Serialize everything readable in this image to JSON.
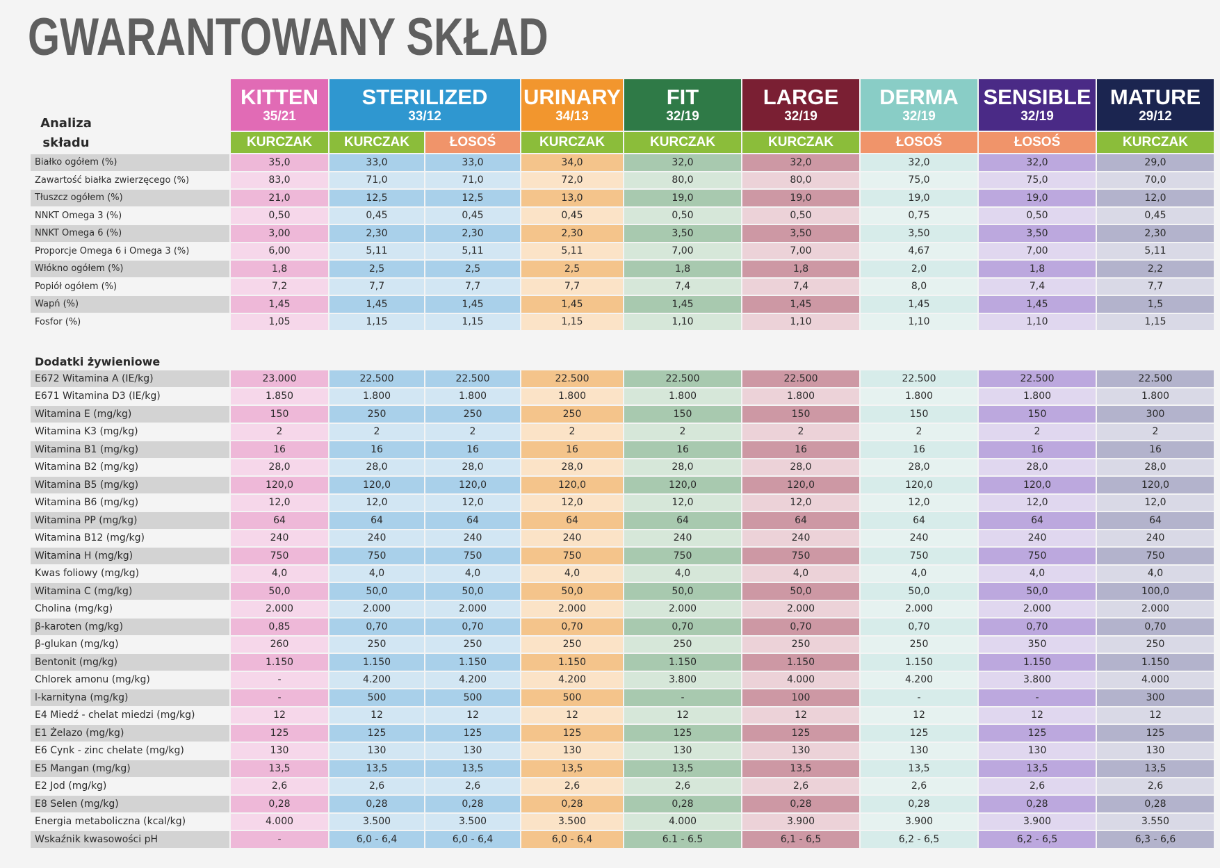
{
  "title": "GWARANTOWANY SKŁAD",
  "header_label": "Analiza składu",
  "products": [
    {
      "name": "KITTEN",
      "ratio": "35/21",
      "color": "#e16bb5",
      "span": 1
    },
    {
      "name": "STERILIZED",
      "ratio": "33/12",
      "color": "#2f97d0",
      "span": 2
    },
    {
      "name": "URINARY",
      "ratio": "34/13",
      "color": "#f2962e",
      "span": 1
    },
    {
      "name": "FIT",
      "ratio": "32/19",
      "color": "#2f7a47",
      "span": 1
    },
    {
      "name": "LARGE",
      "ratio": "32/19",
      "color": "#7a1f33",
      "span": 1
    },
    {
      "name": "DERMA",
      "ratio": "32/19",
      "color": "#89cdc6",
      "span": 1
    },
    {
      "name": "SENSIBLE",
      "ratio": "32/19",
      "color": "#4a2a86",
      "span": 1
    },
    {
      "name": "MATURE",
      "ratio": "29/12",
      "color": "#1b2550",
      "span": 1
    }
  ],
  "flavors": [
    {
      "label": "KURCZAK",
      "color": "#8bbd3a"
    },
    {
      "label": "KURCZAK",
      "color": "#8bbd3a"
    },
    {
      "label": "ŁOSOŚ",
      "color": "#f0946a"
    },
    {
      "label": "KURCZAK",
      "color": "#8bbd3a"
    },
    {
      "label": "KURCZAK",
      "color": "#8bbd3a"
    },
    {
      "label": "KURCZAK",
      "color": "#8bbd3a"
    },
    {
      "label": "ŁOSOŚ",
      "color": "#f0946a"
    },
    {
      "label": "ŁOSOŚ",
      "color": "#f0946a"
    },
    {
      "label": "KURCZAK",
      "color": "#8bbd3a"
    }
  ],
  "column_colors": {
    "light": [
      "#f6d7ea",
      "#d2e6f3",
      "#d2e6f3",
      "#fbe3c7",
      "#d6e7d9",
      "#ecd2d8",
      "#e6f2f0",
      "#e0d7ef",
      "#d9d9e6"
    ],
    "dark": [
      "#eeb8d8",
      "#a9d0ea",
      "#a9d0ea",
      "#f4c48b",
      "#a8c9af",
      "#cd98a4",
      "#d7ecea",
      "#bca8de",
      "#b3b3cc"
    ]
  },
  "analysis": [
    {
      "label": "Białko ogółem (%)",
      "values": [
        "35,0",
        "33,0",
        "33,0",
        "34,0",
        "32,0",
        "32,0",
        "32,0",
        "32,0",
        "29,0"
      ]
    },
    {
      "label": "Zawartość białka zwierzęcego (%)",
      "values": [
        "83,0",
        "71,0",
        "71,0",
        "72,0",
        "80,0",
        "80,0",
        "75,0",
        "75,0",
        "70,0"
      ]
    },
    {
      "label": "Tłuszcz ogółem (%)",
      "values": [
        "21,0",
        "12,5",
        "12,5",
        "13,0",
        "19,0",
        "19,0",
        "19,0",
        "19,0",
        "12,0"
      ]
    },
    {
      "label": "NNKT Omega 3 (%)",
      "values": [
        "0,50",
        "0,45",
        "0,45",
        "0,45",
        "0,50",
        "0,50",
        "0,75",
        "0,50",
        "0,45"
      ]
    },
    {
      "label": "NNKT Omega 6 (%)",
      "values": [
        "3,00",
        "2,30",
        "2,30",
        "2,30",
        "3,50",
        "3,50",
        "3,50",
        "3,50",
        "2,30"
      ]
    },
    {
      "label": "Proporcje Omega 6 i Omega 3 (%)",
      "values": [
        "6,00",
        "5,11",
        "5,11",
        "5,11",
        "7,00",
        "7,00",
        "4,67",
        "7,00",
        "5,11"
      ]
    },
    {
      "label": "Włókno ogółem (%)",
      "values": [
        "1,8",
        "2,5",
        "2,5",
        "2,5",
        "1,8",
        "1,8",
        "2,0",
        "1,8",
        "2,2"
      ]
    },
    {
      "label": "Popiół ogółem (%)",
      "values": [
        "7,2",
        "7,7",
        "7,7",
        "7,7",
        "7,4",
        "7,4",
        "8,0",
        "7,4",
        "7,7"
      ]
    },
    {
      "label": "Wapń (%)",
      "values": [
        "1,45",
        "1,45",
        "1,45",
        "1,45",
        "1,45",
        "1,45",
        "1,45",
        "1,45",
        "1,5"
      ]
    },
    {
      "label": "Fosfor (%)",
      "values": [
        "1,05",
        "1,15",
        "1,15",
        "1,15",
        "1,10",
        "1,10",
        "1,10",
        "1,10",
        "1,15"
      ]
    }
  ],
  "additives_title": "Dodatki żywieniowe",
  "additives": [
    {
      "label": "E672 Witamina A (IE/kg)",
      "values": [
        "23.000",
        "22.500",
        "22.500",
        "22.500",
        "22.500",
        "22.500",
        "22.500",
        "22.500",
        "22.500"
      ]
    },
    {
      "label": "E671 Witamina D3 (IE/kg)",
      "values": [
        "1.850",
        "1.800",
        "1.800",
        "1.800",
        "1.800",
        "1.800",
        "1.800",
        "1.800",
        "1.800"
      ]
    },
    {
      "label": "Witamina E (mg/kg)",
      "values": [
        "150",
        "250",
        "250",
        "250",
        "150",
        "150",
        "150",
        "150",
        "300"
      ]
    },
    {
      "label": "Witamina K3 (mg/kg)",
      "values": [
        "2",
        "2",
        "2",
        "2",
        "2",
        "2",
        "2",
        "2",
        "2"
      ]
    },
    {
      "label": "Witamina B1 (mg/kg)",
      "values": [
        "16",
        "16",
        "16",
        "16",
        "16",
        "16",
        "16",
        "16",
        "16"
      ]
    },
    {
      "label": "Witamina B2 (mg/kg)",
      "values": [
        "28,0",
        "28,0",
        "28,0",
        "28,0",
        "28,0",
        "28,0",
        "28,0",
        "28,0",
        "28,0"
      ]
    },
    {
      "label": "Witamina B5 (mg/kg)",
      "values": [
        "120,0",
        "120,0",
        "120,0",
        "120,0",
        "120,0",
        "120,0",
        "120,0",
        "120,0",
        "120,0"
      ]
    },
    {
      "label": "Witamina B6 (mg/kg)",
      "values": [
        "12,0",
        "12,0",
        "12,0",
        "12,0",
        "12,0",
        "12,0",
        "12,0",
        "12,0",
        "12,0"
      ]
    },
    {
      "label": "Witamina PP (mg/kg)",
      "values": [
        "64",
        "64",
        "64",
        "64",
        "64",
        "64",
        "64",
        "64",
        "64"
      ]
    },
    {
      "label": "Witamina B12 (mg/kg)",
      "values": [
        "240",
        "240",
        "240",
        "240",
        "240",
        "240",
        "240",
        "240",
        "240"
      ]
    },
    {
      "label": "Witamina H (mg/kg)",
      "values": [
        "750",
        "750",
        "750",
        "750",
        "750",
        "750",
        "750",
        "750",
        "750"
      ]
    },
    {
      "label": "Kwas foliowy (mg/kg)",
      "values": [
        "4,0",
        "4,0",
        "4,0",
        "4,0",
        "4,0",
        "4,0",
        "4,0",
        "4,0",
        "4,0"
      ]
    },
    {
      "label": "Witamina C (mg/kg)",
      "values": [
        "50,0",
        "50,0",
        "50,0",
        "50,0",
        "50,0",
        "50,0",
        "50,0",
        "50,0",
        "100,0"
      ]
    },
    {
      "label": "Cholina (mg/kg)",
      "values": [
        "2.000",
        "2.000",
        "2.000",
        "2.000",
        "2.000",
        "2.000",
        "2.000",
        "2.000",
        "2.000"
      ]
    },
    {
      "label": "β-karoten (mg/kg)",
      "values": [
        "0,85",
        "0,70",
        "0,70",
        "0,70",
        "0,70",
        "0,70",
        "0,70",
        "0,70",
        "0,70"
      ]
    },
    {
      "label": "β-glukan (mg/kg)",
      "values": [
        "260",
        "250",
        "250",
        "250",
        "250",
        "250",
        "250",
        "350",
        "250"
      ]
    },
    {
      "label": "Bentonit (mg/kg)",
      "values": [
        "1.150",
        "1.150",
        "1.150",
        "1.150",
        "1.150",
        "1.150",
        "1.150",
        "1.150",
        "1.150"
      ]
    },
    {
      "label": "Chlorek amonu (mg/kg)",
      "values": [
        "-",
        "4.200",
        "4.200",
        "4.200",
        "3.800",
        "4.000",
        "4.200",
        "3.800",
        "4.000"
      ]
    },
    {
      "label": "l-karnityna (mg/kg)",
      "values": [
        "-",
        "500",
        "500",
        "500",
        "-",
        "100",
        "-",
        "-",
        "300"
      ]
    },
    {
      "label": "E4 Miedź - chelat miedzi (mg/kg)",
      "values": [
        "12",
        "12",
        "12",
        "12",
        "12",
        "12",
        "12",
        "12",
        "12"
      ]
    },
    {
      "label": "E1 Żelazo (mg/kg)",
      "values": [
        "125",
        "125",
        "125",
        "125",
        "125",
        "125",
        "125",
        "125",
        "125"
      ]
    },
    {
      "label": "E6 Cynk - zinc chelate (mg/kg)",
      "values": [
        "130",
        "130",
        "130",
        "130",
        "130",
        "130",
        "130",
        "130",
        "130"
      ]
    },
    {
      "label": "E5 Mangan (mg/kg)",
      "values": [
        "13,5",
        "13,5",
        "13,5",
        "13,5",
        "13,5",
        "13,5",
        "13,5",
        "13,5",
        "13,5"
      ]
    },
    {
      "label": "E2 Jod (mg/kg)",
      "values": [
        "2,6",
        "2,6",
        "2,6",
        "2,6",
        "2,6",
        "2,6",
        "2,6",
        "2,6",
        "2,6"
      ]
    },
    {
      "label": "E8 Selen (mg/kg)",
      "values": [
        "0,28",
        "0,28",
        "0,28",
        "0,28",
        "0,28",
        "0,28",
        "0,28",
        "0,28",
        "0,28"
      ]
    },
    {
      "label": "Energia metaboliczna (kcal/kg)",
      "values": [
        "4.000",
        "3.500",
        "3.500",
        "3.500",
        "4.000",
        "3.900",
        "3.900",
        "3.900",
        "3.550"
      ]
    },
    {
      "label": "Wskaźnik kwasowości pH",
      "values": [
        "-",
        "6,0 - 6,4",
        "6,0 - 6,4",
        "6,0 - 6,4",
        "6.1 - 6.5",
        "6,1 - 6,5",
        "6,2 - 6,5",
        "6,2 - 6,5",
        "6,3 - 6,6"
      ]
    }
  ]
}
